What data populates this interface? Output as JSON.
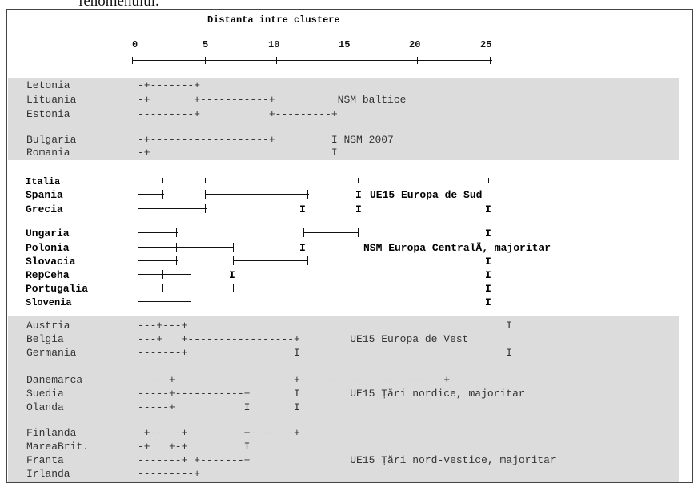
{
  "fragment_above": "fenomenului.",
  "title": "Distanta intre clustere",
  "axis_ticks": [
    "0",
    "5",
    "10",
    "15",
    "20",
    "25"
  ],
  "gray_rows": [
    {
      "name": "Letonia",
      "tree": "-+-------+"
    },
    {
      "name": "Lituania",
      "tree": "-+       +-----------+          NSM baltice"
    },
    {
      "name": "Estonia",
      "tree": "---------+           +---------+"
    },
    {
      "name": "Bulgaria",
      "tree": "-+-------------------+         I NSM 2007"
    },
    {
      "name": "Romania",
      "tree": "-+                             I"
    }
  ],
  "bold_rows": [
    {
      "name": "Italia",
      "label": ""
    },
    {
      "name": "Spania",
      "label": "UE15 Europa de Sud"
    },
    {
      "name": "Grecia",
      "label": ""
    },
    {
      "name": "Ungaria",
      "label": ""
    },
    {
      "name": "Polonia",
      "label": "NSM Europa CentralÄ, majoritar"
    },
    {
      "name": "Slovacia",
      "label": ""
    },
    {
      "name": "RepCeha",
      "label": ""
    },
    {
      "name": "Portugalia",
      "label": ""
    },
    {
      "name": "Slovenia",
      "label": ""
    }
  ],
  "gray_rows_2": [
    {
      "name": "Austria",
      "tree": "---+---+                                                   I"
    },
    {
      "name": "Belgia",
      "tree": "---+   +-----------------+        UE15 Europa de Vest"
    },
    {
      "name": "Germania",
      "tree": "-------+                 I                                 I"
    },
    {
      "name": "Danemarca",
      "tree": "-----+                   +-----------------------+"
    },
    {
      "name": "Suedia",
      "tree": "-----+-----------+       I        UE15 Țări nordice, majoritar"
    },
    {
      "name": "Olanda",
      "tree": "-----+           I       I"
    },
    {
      "name": "Finlanda",
      "tree": "-+-----+         +-------+"
    },
    {
      "name": "MareaBrit.",
      "tree": "-+   +-+         I"
    },
    {
      "name": "Franta",
      "tree": "-------+ +-------+                UE15 Țări nord-vestice, majoritar"
    },
    {
      "name": "Irlanda",
      "tree": "---------+"
    }
  ]
}
